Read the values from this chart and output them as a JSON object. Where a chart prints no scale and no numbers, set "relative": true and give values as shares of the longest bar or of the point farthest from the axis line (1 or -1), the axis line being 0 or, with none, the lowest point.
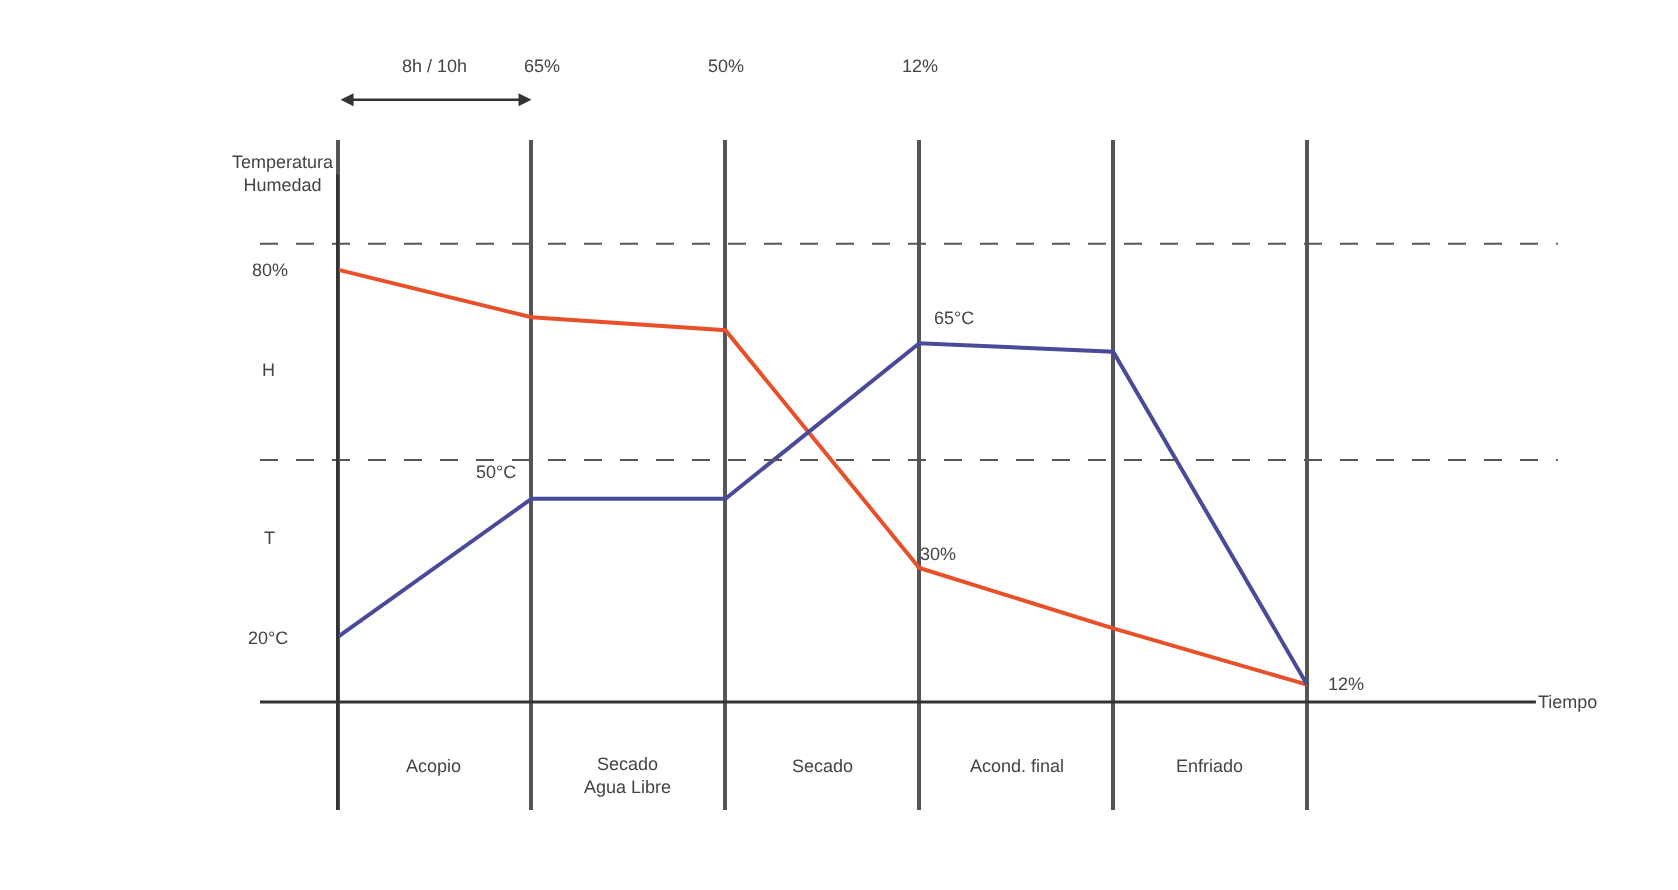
{
  "chart_data": {
    "type": "line",
    "relative": true,
    "categories": [
      null,
      null,
      null,
      null,
      null,
      null
    ],
    "xlabel": "Tiempo",
    "series": [
      {
        "color": "#e8502a",
        "values": [
          1,
          0.89,
          0.86,
          0.31,
          0.17,
          0.04
        ]
      },
      {
        "color": "#4a4a9a",
        "values": [
          0.15,
          0.47,
          0.47,
          0.83,
          0.81,
          0.04
        ]
      }
    ],
    "ref_lines": [
      {
        "axis": "y",
        "value": 1.06,
        "line_style": "dashed",
        "color": "#555555"
      },
      {
        "axis": "y",
        "value": 0.56,
        "line_style": "dashed",
        "color": "#555555"
      }
    ],
    "annotations": [
      "8h / 10h",
      "65%",
      "50%",
      "12%",
      "80%",
      "H",
      "T",
      "20°C",
      "50°C",
      "65°C",
      "30%",
      "12%",
      "Acopio",
      "Secado Agua Libre",
      "Secado",
      "Acond. final",
      "Enfriado",
      "Temperatura Humedad"
    ],
    "grid": "x",
    "marker": "none",
    "line_style": "solid",
    "legend": false
  }
}
